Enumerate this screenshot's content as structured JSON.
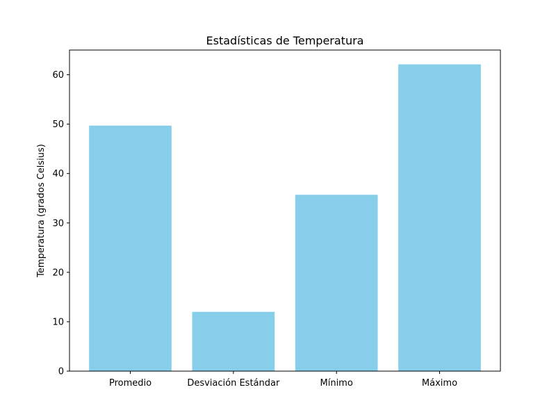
{
  "chart_data": {
    "type": "bar",
    "title": "Estadísticas de Temperatura",
    "xlabel": "",
    "ylabel": "Temperatura (grados Celsius)",
    "categories": [
      "Promedio",
      "Desviación Estándar",
      "Mínimo",
      "Máximo"
    ],
    "values": [
      49.7,
      12.0,
      35.7,
      62.1
    ],
    "ylim": [
      0,
      65
    ],
    "yticks": [
      0,
      10,
      20,
      30,
      40,
      50,
      60
    ],
    "bar_color": "#87ceeb",
    "grid": false,
    "legend": "none"
  }
}
